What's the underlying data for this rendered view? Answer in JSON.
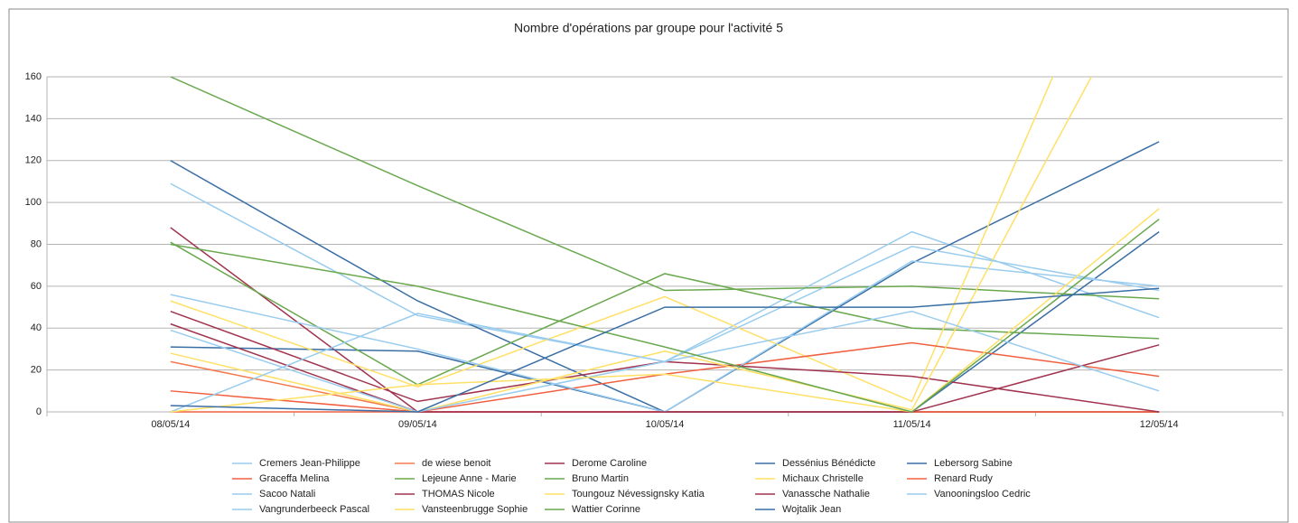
{
  "chart_data": {
    "type": "line",
    "title": "Nombre d'opérations par groupe pour l'activité 5",
    "categories": [
      "08/05/14",
      "09/05/14",
      "10/05/14",
      "11/05/14",
      "12/05/14"
    ],
    "ylim": [
      0,
      160
    ],
    "yticks": [
      0,
      20,
      40,
      60,
      80,
      100,
      120,
      140,
      160
    ],
    "grid": true,
    "series": [
      {
        "name": "Cremers Jean-Philippe",
        "color": "#99ccee",
        "values": [
          109,
          46,
          24,
          86,
          45
        ]
      },
      {
        "name": "de wiese benoit",
        "color": "#f4794e",
        "values": [
          24,
          0,
          0,
          0,
          0
        ]
      },
      {
        "name": "Derome Caroline",
        "color": "#a0334e",
        "values": [
          88,
          0,
          0,
          0,
          0
        ]
      },
      {
        "name": "Dessénius Bénédicte",
        "color": "#3a6ea5",
        "values": [
          120,
          53,
          0,
          71,
          129
        ]
      },
      {
        "name": "Lebersorg Sabine",
        "color": "#3a6ea5",
        "values": [
          31,
          29,
          0,
          0,
          86
        ]
      },
      {
        "name": "Graceffa Melina",
        "color": "#f06040",
        "values": [
          10,
          0,
          0,
          0,
          0
        ]
      },
      {
        "name": "Lejeune Anne - Marie",
        "color": "#6aa84f",
        "values": [
          160,
          108,
          58,
          60,
          54
        ]
      },
      {
        "name": "Bruno Martin",
        "color": "#6aa84f",
        "values": [
          81,
          13,
          66,
          40,
          35
        ]
      },
      {
        "name": "Michaux Christelle",
        "color": "#ffe066",
        "values": [
          53,
          12,
          55,
          5,
          277
        ]
      },
      {
        "name": "Renard Rudy",
        "color": "#f06040",
        "values": [
          0,
          0,
          18,
          33,
          17
        ]
      },
      {
        "name": "Sacoo Natali",
        "color": "#99ccee",
        "values": [
          56,
          30,
          0,
          72,
          60
        ]
      },
      {
        "name": "THOMAS Nicole",
        "color": "#a0334e",
        "values": [
          48,
          5,
          24,
          17,
          0
        ]
      },
      {
        "name": "Toungouz Névessignsky Katia",
        "color": "#ffe066",
        "values": [
          28,
          0,
          29,
          1,
          220
        ]
      },
      {
        "name": "Vanassche Nathalie",
        "color": "#a0334e",
        "values": [
          42,
          0,
          0,
          0,
          32
        ]
      },
      {
        "name": "Vanooningsloo Cedric",
        "color": "#99ccee",
        "values": [
          39,
          0,
          24,
          48,
          10
        ]
      },
      {
        "name": "Vangrunderbeeck Pascal",
        "color": "#99ccee",
        "values": [
          0,
          47,
          24,
          79,
          58
        ]
      },
      {
        "name": "Vansteenbrugge Sophie",
        "color": "#ffe066",
        "values": [
          0,
          13,
          18,
          0,
          97
        ]
      },
      {
        "name": "Wattier Corinne",
        "color": "#6aa84f",
        "values": [
          80,
          60,
          31,
          0,
          92
        ]
      },
      {
        "name": "Wojtalik Jean",
        "color": "#3a6ea5",
        "values": [
          3,
          0,
          50,
          50,
          59
        ]
      }
    ]
  }
}
